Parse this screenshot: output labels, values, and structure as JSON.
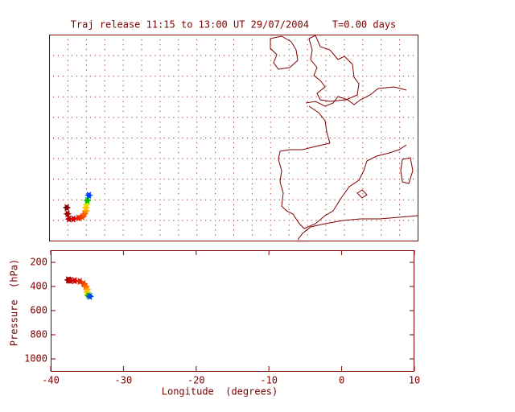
{
  "chart_data": [
    {
      "type": "map",
      "title": "Traj release 11:15 to 13:00 UT 29/07/2004    T=0.00 days",
      "xlim": [
        -40,
        10
      ],
      "ylim": [
        35,
        55
      ],
      "x": [
        -37.6,
        -37.5,
        -37.3,
        -36.7,
        -36.0,
        -35.5,
        -35.2,
        -35.0,
        -35.0,
        -34.9,
        -34.8,
        -34.6
      ],
      "y": [
        38.2,
        37.6,
        37.1,
        37.1,
        37.2,
        37.3,
        37.6,
        37.9,
        38.2,
        38.5,
        38.9,
        39.4
      ],
      "colors": [
        "#800000",
        "#a00000",
        "#c00000",
        "#d80000",
        "#e82000",
        "#f04000",
        "#ff6000",
        "#ff9000",
        "#ffc000",
        "#e0e000",
        "#00c000",
        "#0040ff"
      ]
    },
    {
      "type": "scatter",
      "xlabel": "Longitude  (degrees)",
      "ylabel": "Pressure  (hPa)",
      "xlim": [
        -40,
        10
      ],
      "ylim": [
        1100,
        100
      ],
      "xticks": [
        -40,
        -30,
        -20,
        -10,
        0,
        10
      ],
      "yticks": [
        200,
        400,
        600,
        800,
        1000
      ],
      "x": [
        -37.6,
        -37.5,
        -37.3,
        -36.7,
        -36.0,
        -35.5,
        -35.2,
        -35.0,
        -35.0,
        -34.9,
        -34.8,
        -34.6
      ],
      "y": [
        345,
        348,
        350,
        352,
        358,
        375,
        400,
        425,
        445,
        465,
        475,
        482
      ],
      "colors": [
        "#800000",
        "#a00000",
        "#c00000",
        "#d80000",
        "#e82000",
        "#f04000",
        "#ff6000",
        "#ff9000",
        "#ffc000",
        "#e0e000",
        "#00c000",
        "#0040ff"
      ]
    }
  ]
}
